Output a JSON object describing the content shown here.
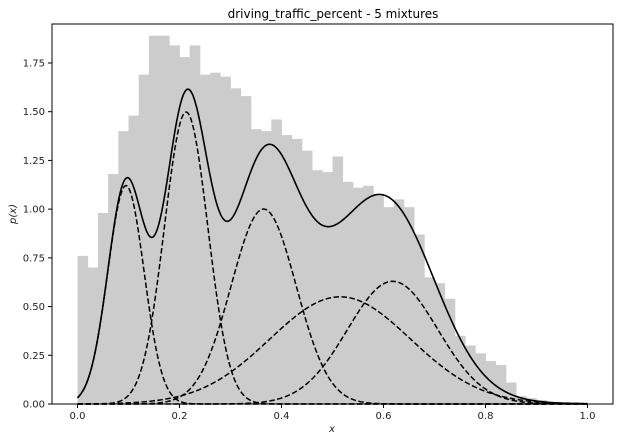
{
  "chart_data": {
    "type": "histogram-density",
    "title": "driving_traffic_percent - 5 mixtures",
    "xlabel": "x",
    "ylabel": "p(x)",
    "xlim": [
      -0.05,
      1.05
    ],
    "ylim": [
      0,
      1.95
    ],
    "x_ticks": [
      0.0,
      0.2,
      0.4,
      0.6,
      0.8,
      1.0
    ],
    "x_tick_labels": [
      "0.0",
      "0.2",
      "0.4",
      "0.6",
      "0.8",
      "1.0"
    ],
    "y_ticks": [
      0.0,
      0.25,
      0.5,
      0.75,
      1.0,
      1.25,
      1.5,
      1.75
    ],
    "y_tick_labels": [
      "0.00",
      "0.25",
      "0.50",
      "0.75",
      "1.00",
      "1.25",
      "1.50",
      "1.75"
    ],
    "grid": false,
    "legend": "none",
    "histogram": {
      "color": "#cccccc",
      "bin_edges": [
        0.0,
        0.02,
        0.04,
        0.06,
        0.08,
        0.1,
        0.12,
        0.14,
        0.16,
        0.18,
        0.2,
        0.22,
        0.24,
        0.26,
        0.28,
        0.3,
        0.32,
        0.34,
        0.36,
        0.38,
        0.4,
        0.42,
        0.44,
        0.46,
        0.48,
        0.5,
        0.52,
        0.54,
        0.56,
        0.58,
        0.6,
        0.62,
        0.64,
        0.66,
        0.68,
        0.7,
        0.72,
        0.74,
        0.76,
        0.78,
        0.8,
        0.82,
        0.84,
        0.86,
        0.88,
        0.9,
        0.92,
        0.94,
        0.96,
        0.98,
        1.0
      ],
      "densities": [
        0.76,
        0.7,
        0.98,
        1.18,
        1.4,
        1.48,
        1.69,
        1.89,
        1.89,
        1.84,
        1.78,
        1.84,
        1.69,
        1.7,
        1.68,
        1.62,
        1.58,
        1.41,
        1.4,
        1.46,
        1.38,
        1.36,
        1.3,
        1.2,
        1.19,
        1.27,
        1.14,
        1.11,
        1.12,
        1.07,
        1.01,
        1.05,
        1.01,
        0.87,
        0.65,
        0.62,
        0.54,
        0.35,
        0.3,
        0.26,
        0.22,
        0.2,
        0.11,
        0.04,
        0.03,
        0.02,
        0.01,
        0.01,
        0.01,
        0.01
      ]
    },
    "components": [
      {
        "weight": 0.1,
        "mean": 0.095,
        "std": 0.0356
      },
      {
        "weight": 0.16,
        "mean": 0.213,
        "std": 0.0426
      },
      {
        "weight": 0.16,
        "mean": 0.365,
        "std": 0.0638
      },
      {
        "weight": 0.19,
        "mean": 0.515,
        "std": 0.1378
      },
      {
        "weight": 0.14,
        "mean": 0.618,
        "std": 0.0887
      }
    ],
    "mixture_line_color": "#000000"
  }
}
